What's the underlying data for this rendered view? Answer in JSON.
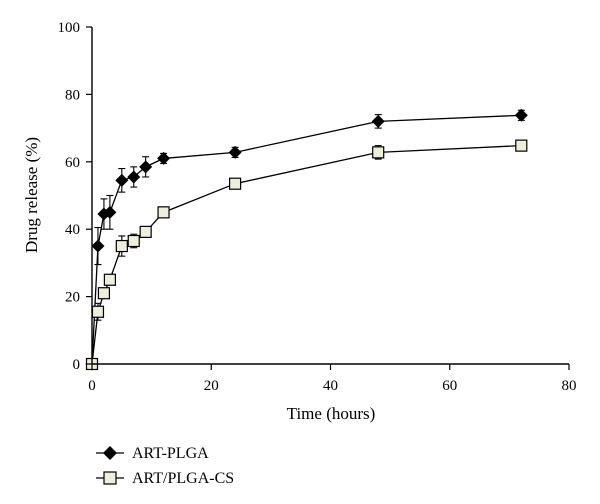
{
  "chart_data": {
    "type": "line",
    "xlabel": "Time (hours)",
    "ylabel": "Drug release (%)",
    "xlim": [
      0,
      80
    ],
    "ylim": [
      0,
      100
    ],
    "x_ticks": [
      0,
      20,
      40,
      60,
      80
    ],
    "y_ticks": [
      0,
      20,
      40,
      60,
      80,
      100
    ],
    "grid": false,
    "legend_position": "bottom-left",
    "series": [
      {
        "name": "ART-PLGA",
        "marker": "filled-diamond",
        "color": "#000000",
        "x": [
          0,
          1,
          2,
          3,
          5,
          7,
          9,
          12,
          24,
          48,
          72
        ],
        "y": [
          0,
          35,
          44.5,
          45,
          54.5,
          55.5,
          58.5,
          61,
          62.8,
          72,
          73.8
        ],
        "error": [
          0,
          5.5,
          4.5,
          5.0,
          3.5,
          3.0,
          3.0,
          1.5,
          1.5,
          2.0,
          1.5
        ]
      },
      {
        "name": "ART/PLGA-CS",
        "marker": "open-square",
        "color": "#000000",
        "fill": "#eeeedd",
        "x": [
          0,
          1,
          2,
          3,
          5,
          7,
          9,
          12,
          24,
          48,
          72
        ],
        "y": [
          0,
          15.5,
          21,
          25,
          35,
          36.5,
          39.2,
          45,
          53.5,
          62.8,
          64.8
        ],
        "error": [
          0,
          2.5,
          1.5,
          1.5,
          3.0,
          2.0,
          1.5,
          1.0,
          1.5,
          2.0,
          1.5
        ]
      }
    ]
  }
}
